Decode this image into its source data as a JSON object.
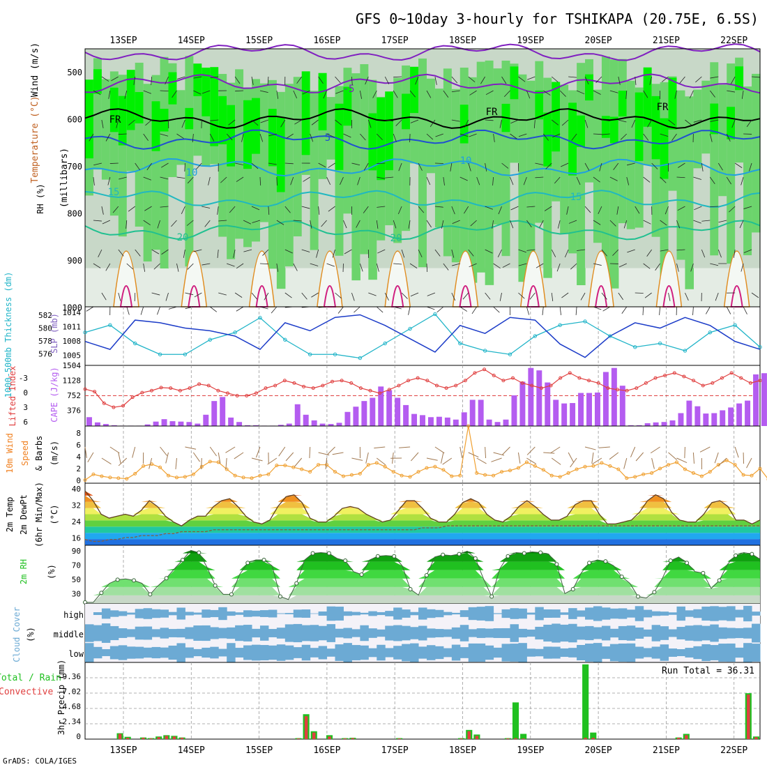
{
  "title": "GFS 0~10day 3-hourly for TSHIKAPA (20.75E, 6.5S)",
  "credit": "GrADS: COLA/IGES",
  "dates": [
    "13SEP",
    "14SEP",
    "15SEP",
    "16SEP",
    "17SEP",
    "18SEP",
    "19SEP",
    "20SEP",
    "21SEP",
    "22SEP"
  ],
  "colors": {
    "rh_light": "#c8d8c8",
    "rh_mid": "#6cd46c",
    "rh_bright": "#00f000",
    "slp": "#1c3cc8",
    "thickness": "#20b4c8",
    "cape_bar": "#b45cf0",
    "lifted_index": "#e04040",
    "wind": "#f0a030",
    "barb": "#a07850",
    "rh2m": "#20c020",
    "cloud": "#6caad4",
    "precip_total": "#20c020",
    "precip_conv": "#e04040"
  },
  "panels": {
    "upper": {
      "ylabel_rh": "RH (%)",
      "ylabel_temp": "Temperature (°C)",
      "ylabel_wind": "Wind (m/s)",
      "ylabel_mb": "(millibars)",
      "pressure_ticks": [
        "500",
        "600",
        "700",
        "800",
        "900",
        "1000"
      ],
      "contour_labels": [
        "-5",
        "FR",
        "FR",
        "FR",
        "5",
        "10",
        "10",
        "15",
        "15",
        "20",
        "20"
      ]
    },
    "slp": {
      "ylabel_thick": "1000-500mb Thickness (dm)",
      "ylabel_slp": "SLP (mb)",
      "thick_ticks": [
        "582",
        "580",
        "578",
        "576"
      ],
      "slp_ticks": [
        "1014",
        "1011",
        "1008",
        "1005"
      ]
    },
    "cape": {
      "ylabel_li": "Lifted Index",
      "ylabel_cape": "CAPE (J/kg)",
      "li_ticks": [
        "-3",
        "0",
        "3",
        "6"
      ],
      "cape_ticks": [
        "1504",
        "1128",
        "752",
        "376"
      ]
    },
    "wind": {
      "ylabel_a": "10m Wind",
      "ylabel_b": "Speed",
      "ylabel_c": "& Barbs",
      "ylabel_unit": "(m/s)",
      "ticks": [
        "8",
        "6",
        "4",
        "2",
        "0"
      ]
    },
    "temp": {
      "ylabel_a": "2m Temp",
      "ylabel_b": "2m DewPt",
      "ylabel_c": "(6hr Min/Max)",
      "ylabel_unit": "(°C)",
      "ticks": [
        "40",
        "32",
        "24",
        "16"
      ]
    },
    "rh": {
      "ylabel": "2m RH",
      "ylabel_unit": "(%)",
      "ticks": [
        "90",
        "70",
        "50",
        "30"
      ]
    },
    "cloud": {
      "ylabel": "Cloud Cover",
      "ylabel_unit": "(%)",
      "levels": [
        "high",
        "middle",
        "low"
      ]
    },
    "precip": {
      "ylabel_a": "Total / Rain",
      "ylabel_b": "Convective",
      "ylabel_c": "3hr Precip (mm)",
      "ticks": [
        "9.36",
        "7.02",
        "4.68",
        "2.34",
        "0"
      ],
      "run_total": "Run Total = 36.31"
    }
  },
  "chart_data": [
    {
      "type": "line",
      "title": "1000-500mb Thickness (dm) / SLP (mb)",
      "x_unit": "3-hourly steps from 12SEP 18Z",
      "series": [
        {
          "name": "SLP (mb)",
          "x": [
            0,
            3,
            6,
            9,
            12,
            15,
            18,
            21,
            24,
            27,
            30,
            33,
            36,
            39,
            42,
            45,
            48,
            51,
            54,
            57,
            60,
            63,
            66,
            69,
            72,
            75,
            78,
            81
          ],
          "values": [
            1008.5,
            1007.0,
            1012.5,
            1012.0,
            1011.0,
            1010.5,
            1009.5,
            1007.0,
            1012.0,
            1010.5,
            1013.0,
            1013.5,
            1011.5,
            1009.0,
            1006.5,
            1011.5,
            1010.0,
            1013.0,
            1012.5,
            1008.0,
            1005.5,
            1009.5,
            1012.0,
            1011.0,
            1013.0,
            1011.5,
            1008.5,
            1007.0
          ]
        },
        {
          "name": "1000-500mb Thickness (dm)",
          "x": [
            0,
            3,
            6,
            9,
            12,
            15,
            18,
            21,
            24,
            27,
            30,
            33,
            36,
            39,
            42,
            45,
            48,
            51,
            54,
            57,
            60,
            63,
            66,
            69,
            72,
            75,
            78,
            81
          ],
          "values": [
            579.5,
            580.5,
            578.0,
            576.5,
            576.5,
            578.5,
            579.5,
            581.5,
            578.5,
            576.5,
            576.5,
            576.0,
            578.0,
            580.0,
            582.0,
            578.0,
            577.0,
            576.5,
            579.0,
            580.5,
            581.0,
            579.0,
            577.5,
            578.0,
            577.0,
            579.5,
            580.5,
            577.5
          ]
        }
      ],
      "ylim_slp": [
        1004,
        1015
      ],
      "ylim_thick": [
        575,
        583
      ]
    },
    {
      "type": "bar",
      "title": "CAPE (J/kg) / Lifted Index",
      "series": [
        {
          "name": "CAPE (J/kg)",
          "values": [
            220,
            90,
            50,
            20,
            10,
            10,
            10,
            40,
            110,
            170,
            120,
            110,
            100,
            60,
            280,
            620,
            720,
            210,
            100,
            20,
            20,
            10,
            10,
            30,
            60,
            540,
            280,
            140,
            60,
            50,
            80,
            350,
            480,
            620,
            700,
            980,
            890,
            700,
            520,
            300,
            270,
            220,
            230,
            210,
            160,
            340,
            650,
            650,
            160,
            100,
            160,
            760,
            1100,
            1440,
            1380,
            1080,
            650,
            560,
            570,
            820,
            820,
            830,
            1340,
            1440,
            1000,
            20,
            20,
            70,
            90,
            100,
            140,
            320,
            630,
            490,
            310,
            320,
            390,
            460,
            560,
            630,
            1280,
            1310,
            1230,
            1000,
            220,
            430,
            760
          ]
        },
        {
          "name": "Lifted Index",
          "values": [
            -1.3,
            -0.8,
            1.5,
            2.3,
            2.0,
            0.3,
            -0.6,
            -1.0,
            -1.6,
            -1.5,
            -1.0,
            -1.5,
            -2.3,
            -2.0,
            -1.0,
            -0.5,
            0.0,
            0.0,
            -0.5,
            -1.5,
            -2.0,
            -3.0,
            -2.5,
            -1.8,
            -1.5,
            -2.0,
            -2.8,
            -3.0,
            -2.5,
            -1.5,
            -1.0,
            -0.5,
            -1.2,
            -2.0,
            -3.0,
            -3.5,
            -3.0,
            -2.0,
            -1.5,
            -2.0,
            -3.0,
            -4.5,
            -5.2,
            -4.0,
            -3.0,
            -3.5,
            -2.5,
            -2.0,
            -1.5,
            -2.0,
            -3.5,
            -4.5,
            -3.5,
            -3.0,
            -2.5,
            -1.5,
            -1.2,
            -1.0,
            -1.5,
            -2.5,
            -3.5,
            -4.0,
            -4.5,
            -3.8,
            -3.0,
            -2.0,
            -2.5,
            -3.5,
            -4.5,
            -3.5,
            -2.5,
            -3.0
          ]
        }
      ],
      "ylim_cape": [
        0,
        1504
      ],
      "ylim_li": [
        6,
        -6
      ]
    },
    {
      "type": "line",
      "title": "10m Wind Speed (m/s)",
      "series": [
        {
          "name": "10m Wind Speed (m/s)",
          "values": [
            0.5,
            1.4,
            1.1,
            0.9,
            0.8,
            0.7,
            1.5,
            2.7,
            3.0,
            2.5,
            1.2,
            0.9,
            1.0,
            1.4,
            2.6,
            3.4,
            3.3,
            2.2,
            1.2,
            0.9,
            0.8,
            1.2,
            1.4,
            2.8,
            2.8,
            2.5,
            2.2,
            1.8,
            2.9,
            2.9,
            1.8,
            1.1,
            1.3,
            1.5,
            2.9,
            3.2,
            2.6,
            1.8,
            1.2,
            1.0,
            1.8,
            2.4,
            2.6,
            2.1,
            1.1,
            1.2,
            9.0,
            1.6,
            1.3,
            1.2,
            1.8,
            2.0,
            2.4,
            3.3,
            2.7,
            2.1,
            1.2,
            1.0,
            1.6,
            2.2,
            2.6,
            2.7,
            3.2,
            2.7,
            2.2,
            0.8,
            1.0,
            1.4,
            1.6,
            2.3,
            2.9,
            3.3,
            2.2,
            1.6,
            1.1,
            1.8,
            2.9,
            3.6,
            2.9,
            1.3,
            1.2,
            2.3,
            0.6,
            1.0,
            2.8
          ]
        }
      ],
      "ylim": [
        0,
        9
      ]
    },
    {
      "type": "area",
      "title": "2m Temp / 2m DewPt (°C)",
      "series": [
        {
          "name": "2m Temp (°C)",
          "values": [
            38,
            33,
            26,
            24,
            25,
            26,
            25,
            28,
            33,
            30,
            25,
            22,
            20,
            23,
            25,
            25,
            30,
            33,
            34,
            30,
            25,
            22,
            21,
            23,
            30,
            35,
            36,
            32,
            24,
            22,
            22,
            25,
            29,
            30,
            29,
            26,
            24,
            22,
            23,
            28,
            33,
            33,
            29,
            24,
            22,
            22,
            26,
            32,
            34,
            32,
            26,
            23,
            22,
            25,
            30,
            33,
            30,
            26,
            23,
            23,
            25,
            31,
            33,
            33,
            26,
            21,
            21,
            22,
            23,
            27,
            33,
            36,
            34,
            27,
            23,
            22,
            22,
            26,
            32,
            33,
            30,
            23,
            23,
            21,
            23
          ]
        },
        {
          "name": "2m DewPt (°C)",
          "values": [
            13,
            12,
            12,
            13,
            13,
            14,
            14,
            15,
            15,
            15,
            16,
            16,
            17,
            17,
            17,
            17,
            18,
            18,
            18,
            18,
            18,
            18,
            18,
            18,
            18,
            18,
            18,
            18,
            18,
            18,
            18,
            18,
            18,
            18,
            18,
            18,
            18,
            18,
            18,
            18,
            18,
            18,
            19,
            19,
            19,
            20,
            20,
            20,
            20,
            20,
            20,
            20,
            20,
            20,
            20,
            20,
            20,
            20,
            20,
            20,
            20,
            20,
            20,
            20,
            20,
            20,
            20,
            20,
            20,
            20,
            20,
            20,
            20,
            20,
            20,
            20,
            20,
            20,
            20,
            20,
            20,
            20,
            20,
            20,
            20
          ]
        }
      ],
      "ylim": [
        10,
        42
      ]
    },
    {
      "type": "area",
      "title": "2m RH (%)",
      "series": [
        {
          "name": "2m RH (%)",
          "values": [
            22,
            22,
            35,
            48,
            53,
            54,
            52,
            48,
            33,
            45,
            55,
            68,
            80,
            93,
            90,
            70,
            45,
            33,
            33,
            60,
            76,
            80,
            80,
            72,
            30,
            26,
            48,
            80,
            89,
            90,
            89,
            82,
            79,
            64,
            60,
            80,
            85,
            86,
            85,
            72,
            40,
            32,
            59,
            84,
            87,
            86,
            88,
            92,
            82,
            54,
            30,
            68,
            85,
            90,
            89,
            91,
            90,
            88,
            74,
            34,
            40,
            62,
            76,
            80,
            78,
            72,
            57,
            48,
            30,
            28,
            36,
            55,
            79,
            84,
            76,
            64,
            62,
            41,
            52,
            74,
            86,
            90,
            88,
            81
          ]
        }
      ],
      "ylim": [
        20,
        100
      ]
    },
    {
      "type": "bar",
      "title": "3hr Precip (mm)",
      "series": [
        {
          "name": "Total / Rain",
          "values": [
            0,
            0,
            0,
            0,
            0.9,
            0.35,
            0,
            0.25,
            0.15,
            0.4,
            0.6,
            0.5,
            0.25,
            0,
            0,
            0,
            0,
            0,
            0,
            0,
            0,
            0,
            0,
            0,
            0,
            0,
            0,
            0.15,
            3.8,
            1.2,
            0,
            0.6,
            0,
            0.15,
            0.2,
            0,
            0,
            0,
            0,
            0,
            0.15,
            0,
            0,
            0,
            0,
            0,
            0,
            0,
            0.15,
            1.4,
            0.7,
            0,
            0,
            0,
            0.15,
            5.6,
            0.8,
            0,
            0,
            0,
            0,
            0,
            0,
            0,
            11.4,
            1.0,
            0,
            0,
            0,
            0,
            0,
            0,
            0,
            0,
            0,
            0,
            0.25,
            0.8,
            0,
            0,
            0,
            0,
            0,
            0,
            0,
            7.0,
            0.4
          ]
        },
        {
          "name": "Convective",
          "values": [
            0,
            0,
            0,
            0,
            0.8,
            0.2,
            0,
            0.2,
            0.1,
            0.3,
            0.5,
            0.4,
            0.2,
            0,
            0,
            0,
            0,
            0,
            0,
            0,
            0,
            0,
            0,
            0,
            0,
            0,
            0,
            0.1,
            3.5,
            1.0,
            0,
            0.4,
            0,
            0.1,
            0.15,
            0,
            0,
            0,
            0,
            0,
            0.1,
            0,
            0,
            0,
            0,
            0,
            0,
            0,
            0.1,
            1.2,
            0.5,
            0,
            0,
            0,
            0.1,
            0.15,
            0.1,
            0,
            0,
            0,
            0,
            0,
            0,
            0,
            0.2,
            0.2,
            0,
            0,
            0,
            0,
            0,
            0,
            0,
            0,
            0,
            0,
            0.2,
            0.6,
            0,
            0,
            0,
            0,
            0,
            0,
            0,
            6.8,
            0.3
          ]
        }
      ],
      "ylim": [
        0,
        11.7
      ]
    }
  ]
}
